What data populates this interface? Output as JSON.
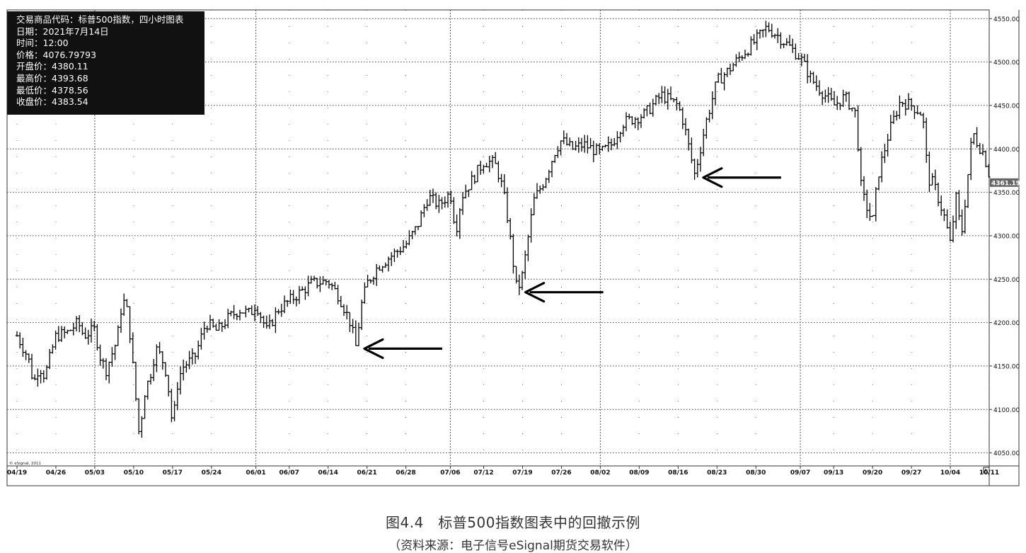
{
  "info_box": {
    "lines": [
      "交易商品代码：标普500指数，四小时图表",
      "日期：2021年7月14日",
      "时间：12:00",
      "价格：4076.79793",
      "开盘价：4380.11",
      "最高价：4393.68",
      "最低价：4378.56",
      "收盘价：4383.54"
    ]
  },
  "caption": {
    "title": "图4.4　标普500指数图表中的回撤示例",
    "source": "（资料来源：电子信号eSignal期货交易软件）"
  },
  "chart_data": {
    "type": "ohlc",
    "title": "",
    "xlabel": "",
    "ylabel": "",
    "ylim": [
      4035,
      4560
    ],
    "grid": true,
    "last_price_label": "4361.19",
    "watermark": "© eSignal, 2011",
    "y_ticks": [
      "4550.00",
      "4500.00",
      "4450.00",
      "4400.00",
      "4350.00",
      "4300.00",
      "4250.00",
      "4200.00",
      "4150.00",
      "4100.00",
      "4050.00"
    ],
    "x_labels": [
      "04/19",
      "04/26",
      "05/03",
      "05/10",
      "05/17",
      "05/24",
      "06/01",
      "06/07",
      "06/14",
      "06/21",
      "06/28",
      "07/06",
      "07/12",
      "07/19",
      "07/26",
      "08/02",
      "08/09",
      "08/16",
      "08/23",
      "08/30",
      "09/07",
      "09/13",
      "09/20",
      "09/27",
      "10/04",
      "10/11"
    ],
    "month_separators": [
      "05/03",
      "06/01",
      "07/06",
      "08/02",
      "09/07",
      "10/04"
    ],
    "price_path": [
      [
        "04/19",
        4185
      ],
      [
        "04/21",
        4160
      ],
      [
        "04/22",
        4130
      ],
      [
        "04/23",
        4150
      ],
      [
        "04/24",
        4138
      ],
      [
        "04/26",
        4185
      ],
      [
        "04/28",
        4188
      ],
      [
        "04/30",
        4200
      ],
      [
        "05/01",
        4185
      ],
      [
        "05/03",
        4192
      ],
      [
        "05/04",
        4160
      ],
      [
        "05/05",
        4145
      ],
      [
        "05/07",
        4180
      ],
      [
        "05/08",
        4228
      ],
      [
        "05/09",
        4210
      ],
      [
        "05/10",
        4140
      ],
      [
        "05/11",
        4070
      ],
      [
        "05/12",
        4120
      ],
      [
        "05/13",
        4140
      ],
      [
        "05/14",
        4170
      ],
      [
        "05/15",
        4160
      ],
      [
        "05/16",
        4140
      ],
      [
        "05/17",
        4080
      ],
      [
        "05/18",
        4135
      ],
      [
        "05/19",
        4150
      ],
      [
        "05/21",
        4160
      ],
      [
        "05/23",
        4200
      ],
      [
        "05/25",
        4190
      ],
      [
        "05/27",
        4205
      ],
      [
        "05/29",
        4215
      ],
      [
        "05/31",
        4210
      ],
      [
        "06/01",
        4222
      ],
      [
        "06/03",
        4190
      ],
      [
        "06/05",
        4215
      ],
      [
        "06/07",
        4225
      ],
      [
        "06/09",
        4235
      ],
      [
        "06/11",
        4245
      ],
      [
        "06/14",
        4248
      ],
      [
        "06/16",
        4230
      ],
      [
        "06/18",
        4200
      ],
      [
        "06/19",
        4172
      ],
      [
        "06/20",
        4220
      ],
      [
        "06/21",
        4245
      ],
      [
        "06/23",
        4265
      ],
      [
        "06/25",
        4275
      ],
      [
        "06/28",
        4290
      ],
      [
        "06/30",
        4310
      ],
      [
        "07/02",
        4345
      ],
      [
        "07/04",
        4335
      ],
      [
        "07/06",
        4350
      ],
      [
        "07/07",
        4305
      ],
      [
        "07/08",
        4345
      ],
      [
        "07/10",
        4365
      ],
      [
        "07/12",
        4385
      ],
      [
        "07/13",
        4385
      ],
      [
        "07/14",
        4383
      ],
      [
        "07/15",
        4365
      ],
      [
        "07/16",
        4335
      ],
      [
        "07/18",
        4235
      ],
      [
        "07/19",
        4255
      ],
      [
        "07/21",
        4340
      ],
      [
        "07/23",
        4365
      ],
      [
        "07/25",
        4400
      ],
      [
        "07/26",
        4410
      ],
      [
        "07/28",
        4400
      ],
      [
        "07/30",
        4405
      ],
      [
        "08/02",
        4395
      ],
      [
        "08/04",
        4405
      ],
      [
        "08/06",
        4430
      ],
      [
        "08/08",
        4435
      ],
      [
        "08/10",
        4440
      ],
      [
        "08/13",
        4462
      ],
      [
        "08/16",
        4450
      ],
      [
        "08/17",
        4430
      ],
      [
        "08/19",
        4370
      ],
      [
        "08/20",
        4400
      ],
      [
        "08/21",
        4430
      ],
      [
        "08/23",
        4478
      ],
      [
        "08/25",
        4490
      ],
      [
        "08/27",
        4505
      ],
      [
        "08/30",
        4525
      ],
      [
        "09/01",
        4540
      ],
      [
        "09/03",
        4530
      ],
      [
        "09/05",
        4518
      ],
      [
        "09/07",
        4505
      ],
      [
        "09/09",
        4480
      ],
      [
        "09/11",
        4465
      ],
      [
        "09/13",
        4450
      ],
      [
        "09/15",
        4460
      ],
      [
        "09/17",
        4440
      ],
      [
        "09/18",
        4350
      ],
      [
        "09/20",
        4315
      ],
      [
        "09/21",
        4370
      ],
      [
        "09/23",
        4420
      ],
      [
        "09/25",
        4455
      ],
      [
        "09/27",
        4450
      ],
      [
        "09/29",
        4440
      ],
      [
        "09/30",
        4365
      ],
      [
        "10/01",
        4360
      ],
      [
        "10/03",
        4320
      ],
      [
        "10/04",
        4290
      ],
      [
        "10/05",
        4345
      ],
      [
        "10/06",
        4300
      ],
      [
        "10/07",
        4360
      ],
      [
        "10/08",
        4420
      ],
      [
        "10/09",
        4405
      ],
      [
        "10/10",
        4395
      ],
      [
        "10/11",
        4370
      ]
    ],
    "annotations": [
      {
        "type": "arrow",
        "at": [
          "06/19",
          4170
        ]
      },
      {
        "type": "arrow",
        "at": [
          "07/18",
          4235
        ]
      },
      {
        "type": "arrow",
        "at": [
          "08/19",
          4367
        ]
      }
    ]
  }
}
